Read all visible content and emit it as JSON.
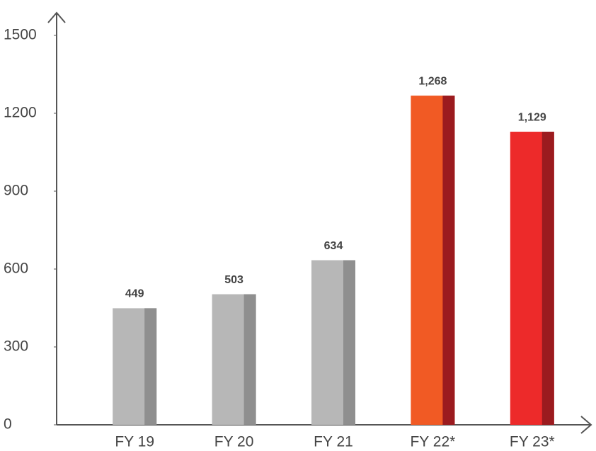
{
  "chart_data": {
    "type": "bar",
    "categories": [
      "FY 19",
      "FY 20",
      "FY 21",
      "FY 22*",
      "FY 23*"
    ],
    "values": [
      449,
      503,
      634,
      1268,
      1129
    ],
    "value_labels": [
      "449",
      "503",
      "634",
      "1,268",
      "1,129"
    ],
    "colors": [
      "#b7b7b7",
      "#b7b7b7",
      "#b7b7b7",
      "#f15a24",
      "#ed2a2a"
    ],
    "shade_colors": [
      "#8f8f8f",
      "#8f8f8f",
      "#8f8f8f",
      "#9b1b1f",
      "#9b1b1f"
    ],
    "ylim": [
      0,
      1500
    ],
    "yticks": [
      0,
      300,
      600,
      900,
      1200,
      1500
    ],
    "grid": false
  }
}
